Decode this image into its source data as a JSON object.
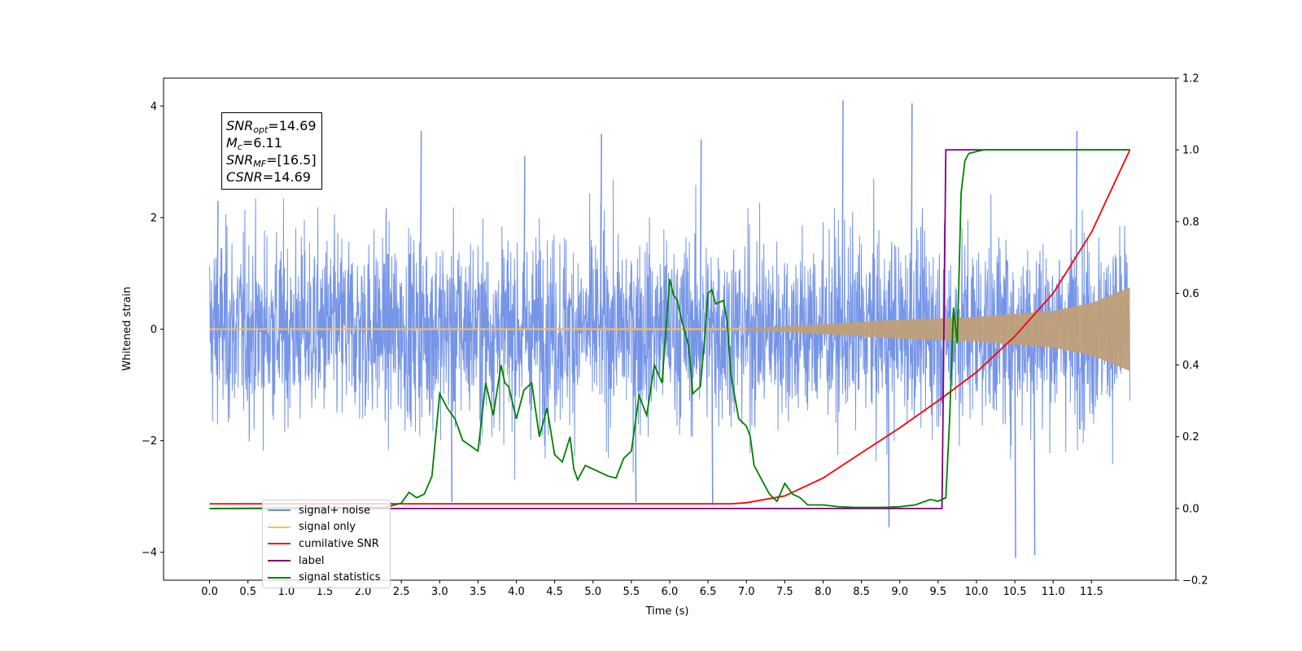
{
  "chart_data": {
    "type": "line",
    "xlabel": "Time (s)",
    "ylabel": "Whitened strain",
    "xlim": [
      -0.6,
      12.6
    ],
    "ylim": [
      -4.5,
      4.5
    ],
    "y2lim": [
      -0.2,
      1.2
    ],
    "x_ticks": [
      "0.0",
      "0.5",
      "1.0",
      "1.5",
      "2.0",
      "2.5",
      "3.0",
      "3.5",
      "4.0",
      "4.5",
      "5.0",
      "5.5",
      "6.0",
      "6.5",
      "7.0",
      "7.5",
      "8.0",
      "8.5",
      "9.0",
      "9.5",
      "10.0",
      "10.5",
      "11.0",
      "11.5"
    ],
    "y_ticks": [
      "−4",
      "−2",
      "0",
      "2",
      "4"
    ],
    "y2_ticks": [
      "−0.2",
      "0.0",
      "0.2",
      "0.4",
      "0.6",
      "0.8",
      "1.0",
      "1.2"
    ],
    "annotation": {
      "snr_opt": "=14.69",
      "mc": "=6.11",
      "snr_mf": "=[16.5]",
      "csnr": "=14.69"
    },
    "legend_position": "lower-left",
    "series": [
      {
        "name": "signal+ noise",
        "color": "#6f8fe6",
        "axis": "left",
        "kind": "noise",
        "envelope_x": [
          0,
          12
        ],
        "envelope_typical": 1.2,
        "envelope_peak": [
          2.3,
          2.6
        ],
        "spikes": [
          [
            0.1,
            2.3
          ],
          [
            2.75,
            3.55
          ],
          [
            5.1,
            3.5
          ],
          [
            6.4,
            3.4
          ],
          [
            8.25,
            4.1
          ],
          [
            9.15,
            4.05
          ],
          [
            10.5,
            -4.1
          ],
          [
            10.75,
            -4.05
          ],
          [
            11.3,
            3.55
          ],
          [
            8.85,
            -3.55
          ],
          [
            4.1,
            3.1
          ],
          [
            3.15,
            -3.1
          ],
          [
            5.55,
            -3.1
          ],
          [
            6.55,
            -3.15
          ]
        ]
      },
      {
        "name": "signal only",
        "color": "#ffbf57",
        "axis": "left",
        "kind": "chirp",
        "amplitude_x": [
          0.0,
          7.0,
          7.5,
          8.0,
          9.0,
          10.0,
          11.0,
          11.5,
          12.0
        ],
        "amplitude_y": [
          0.01,
          0.02,
          0.05,
          0.09,
          0.17,
          0.22,
          0.33,
          0.47,
          0.75
        ]
      },
      {
        "name": "cumilative SNR",
        "color": "#ff0000",
        "axis": "right",
        "x": [
          0.0,
          6.8,
          7.0,
          7.5,
          8.0,
          8.5,
          9.0,
          9.5,
          10.0,
          10.5,
          11.0,
          11.5,
          12.0
        ],
        "y": [
          0.013,
          0.013,
          0.016,
          0.035,
          0.085,
          0.155,
          0.225,
          0.3,
          0.38,
          0.48,
          0.6,
          0.77,
          1.0
        ]
      },
      {
        "name": "label",
        "color": "#800080",
        "axis": "right",
        "x": [
          0.0,
          9.55,
          9.6,
          12.0
        ],
        "y": [
          0.0,
          0.0,
          1.0,
          1.0
        ]
      },
      {
        "name": "signal statistics",
        "color": "#008000",
        "axis": "right",
        "x": [
          0.0,
          2.3,
          2.5,
          2.6,
          2.7,
          2.8,
          2.9,
          3.0,
          3.1,
          3.2,
          3.3,
          3.4,
          3.5,
          3.6,
          3.7,
          3.8,
          3.85,
          3.9,
          4.0,
          4.1,
          4.2,
          4.3,
          4.4,
          4.5,
          4.6,
          4.7,
          4.75,
          4.8,
          4.9,
          5.0,
          5.1,
          5.2,
          5.3,
          5.4,
          5.5,
          5.6,
          5.7,
          5.8,
          5.9,
          6.0,
          6.05,
          6.1,
          6.15,
          6.25,
          6.3,
          6.4,
          6.45,
          6.5,
          6.55,
          6.6,
          6.7,
          6.75,
          6.8,
          6.9,
          7.0,
          7.05,
          7.1,
          7.2,
          7.3,
          7.4,
          7.5,
          7.6,
          7.7,
          7.8,
          8.0,
          8.2,
          8.4,
          8.6,
          8.8,
          9.0,
          9.2,
          9.4,
          9.5,
          9.6,
          9.65,
          9.7,
          9.75,
          9.8,
          9.85,
          9.9,
          10.0,
          10.1,
          10.2,
          10.5,
          12.0
        ],
        "y": [
          0.0,
          0.003,
          0.015,
          0.045,
          0.03,
          0.04,
          0.09,
          0.32,
          0.28,
          0.25,
          0.19,
          0.175,
          0.16,
          0.35,
          0.26,
          0.4,
          0.35,
          0.34,
          0.25,
          0.33,
          0.35,
          0.2,
          0.28,
          0.15,
          0.13,
          0.2,
          0.11,
          0.08,
          0.12,
          0.11,
          0.1,
          0.09,
          0.085,
          0.14,
          0.16,
          0.315,
          0.26,
          0.4,
          0.35,
          0.64,
          0.595,
          0.58,
          0.53,
          0.45,
          0.32,
          0.34,
          0.46,
          0.6,
          0.61,
          0.57,
          0.58,
          0.52,
          0.37,
          0.25,
          0.23,
          0.2,
          0.12,
          0.08,
          0.04,
          0.02,
          0.07,
          0.04,
          0.03,
          0.01,
          0.01,
          0.005,
          0.003,
          0.003,
          0.003,
          0.005,
          0.01,
          0.025,
          0.02,
          0.03,
          0.25,
          0.56,
          0.46,
          0.88,
          0.97,
          0.99,
          0.995,
          1.0,
          1.0,
          1.0,
          1.0
        ]
      }
    ]
  },
  "legend": [
    {
      "label": "signal+ noise",
      "color": "#6f8fe6"
    },
    {
      "label": "signal only",
      "color": "#ffbf57"
    },
    {
      "label": "cumilative SNR",
      "color": "#ff0000"
    },
    {
      "label": "label",
      "color": "#800080"
    },
    {
      "label": "signal statistics",
      "color": "#008000"
    }
  ]
}
